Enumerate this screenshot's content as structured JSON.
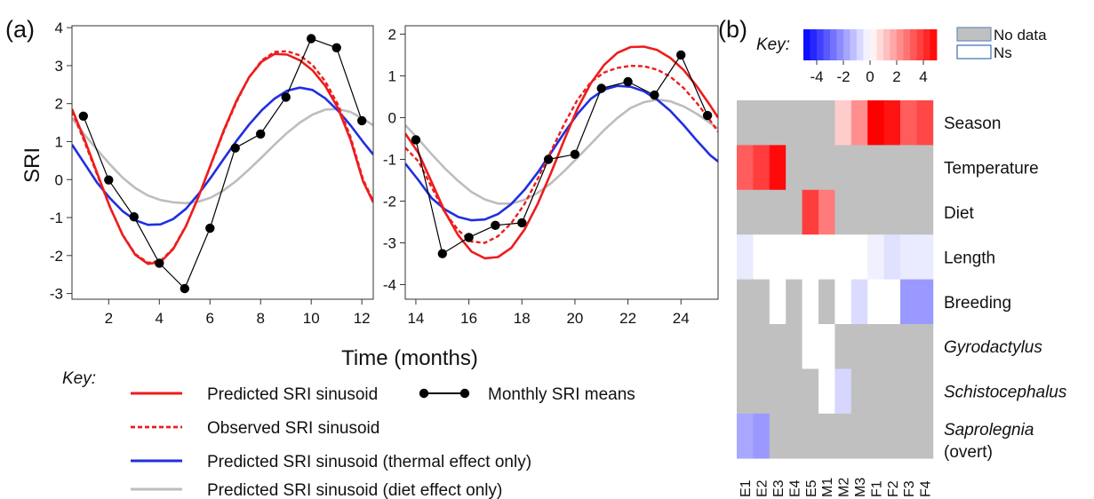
{
  "panel_labels": {
    "a": "(a)",
    "b": "(b)"
  },
  "chart_data": [
    {
      "type": "line",
      "panel": "(a) left",
      "ylabel": "SRI",
      "xlabel": "Time (months)",
      "xlim": [
        0.55,
        12.45
      ],
      "ylim": [
        -3.15,
        4.05
      ],
      "xticks": [
        2,
        4,
        6,
        8,
        10,
        12
      ],
      "yticks": [
        -3,
        -2,
        -1,
        0,
        1,
        2,
        3,
        4
      ],
      "series": [
        {
          "name": "Predicted SRI sinusoid",
          "style": "red-solid",
          "color": "#ee1c1c",
          "x": [
            0.55,
            1.05,
            1.55,
            2.05,
            2.55,
            3.05,
            3.55,
            4.05,
            4.55,
            5.05,
            5.55,
            6.05,
            6.55,
            7.05,
            7.55,
            8.05,
            8.55,
            9.05,
            9.55,
            10.05,
            10.55,
            11.05,
            11.55,
            12.05,
            12.45
          ],
          "y": [
            1.86,
            1.05,
            0.16,
            -0.72,
            -1.46,
            -1.98,
            -2.22,
            -2.17,
            -1.83,
            -1.23,
            -0.45,
            0.43,
            1.3,
            2.08,
            2.7,
            3.11,
            3.31,
            3.29,
            3.14,
            2.88,
            2.47,
            1.89,
            1.05,
            -0.05,
            -0.6
          ]
        },
        {
          "name": "Observed SRI sinusoid",
          "style": "red-dotted",
          "color": "#ee1c1c",
          "x": [
            0.55,
            1.05,
            1.55,
            2.05,
            2.55,
            3.05,
            3.55,
            4.05,
            4.55,
            5.05,
            5.55,
            6.05,
            6.55,
            7.05,
            7.55,
            8.05,
            8.55,
            9.05,
            9.55,
            10.05,
            10.55,
            11.05,
            11.55,
            12.05,
            12.45
          ],
          "y": [
            1.8,
            0.99,
            0.12,
            -0.72,
            -1.45,
            -1.96,
            -2.19,
            -2.14,
            -1.81,
            -1.22,
            -0.45,
            0.41,
            1.27,
            2.05,
            2.7,
            3.14,
            3.36,
            3.38,
            3.27,
            3.02,
            2.59,
            1.98,
            1.12,
            0.0,
            -0.57
          ]
        },
        {
          "name": "Predicted SRI sinusoid (thermal effect only)",
          "style": "blue-solid",
          "color": "#1f2fe0",
          "x": [
            0.55,
            1.05,
            1.55,
            2.05,
            2.55,
            3.05,
            3.55,
            4.05,
            4.55,
            5.05,
            5.55,
            6.05,
            6.55,
            7.05,
            7.55,
            8.05,
            8.55,
            9.05,
            9.55,
            10.05,
            10.55,
            11.05,
            11.55,
            12.05,
            12.45
          ],
          "y": [
            0.92,
            0.42,
            -0.09,
            -0.49,
            -0.83,
            -1.07,
            -1.19,
            -1.18,
            -1.04,
            -0.77,
            -0.38,
            0.07,
            0.55,
            1.02,
            1.45,
            1.83,
            2.13,
            2.34,
            2.42,
            2.36,
            2.14,
            1.82,
            1.43,
            0.99,
            0.66
          ]
        },
        {
          "name": "Predicted SRI sinusoid (diet effect only)",
          "style": "grey-solid",
          "color": "#bdbdbd",
          "x": [
            0.55,
            1.05,
            1.55,
            2.05,
            2.55,
            3.05,
            3.55,
            4.05,
            4.55,
            5.05,
            5.55,
            6.05,
            6.55,
            7.05,
            7.55,
            8.05,
            8.55,
            9.05,
            9.55,
            10.05,
            10.55,
            11.05,
            11.55,
            12.05,
            12.45
          ],
          "y": [
            1.62,
            1.18,
            0.78,
            0.4,
            0.05,
            -0.22,
            -0.42,
            -0.54,
            -0.6,
            -0.62,
            -0.58,
            -0.47,
            -0.28,
            -0.03,
            0.27,
            0.59,
            0.92,
            1.23,
            1.5,
            1.71,
            1.84,
            1.86,
            1.78,
            1.6,
            1.43
          ]
        },
        {
          "name": "Monthly SRI means",
          "style": "black-points",
          "color": "#000000",
          "x": [
            1,
            2,
            3,
            4,
            5,
            6,
            7,
            8,
            9,
            10,
            11,
            12
          ],
          "y": [
            1.67,
            -0.01,
            -0.98,
            -2.2,
            -2.87,
            -1.28,
            0.83,
            1.2,
            2.17,
            3.71,
            3.47,
            1.55
          ]
        }
      ]
    },
    {
      "type": "line",
      "panel": "(a) right",
      "xlabel": "Time (months)",
      "xlim": [
        13.6,
        25.4
      ],
      "ylim": [
        -4.35,
        2.2
      ],
      "xticks": [
        14,
        16,
        18,
        20,
        22,
        24
      ],
      "yticks": [
        -4,
        -3,
        -2,
        -1,
        0,
        1,
        2
      ],
      "series": [
        {
          "name": "Predicted SRI sinusoid",
          "style": "red-solid",
          "color": "#ee1c1c",
          "x": [
            13.6,
            14.1,
            14.6,
            15.1,
            15.6,
            16.1,
            16.6,
            17.1,
            17.6,
            18.1,
            18.6,
            19.1,
            19.6,
            20.1,
            20.6,
            21.1,
            21.6,
            22.1,
            22.6,
            23.1,
            23.6,
            24.1,
            24.6,
            25.1,
            25.4
          ],
          "y": [
            -0.38,
            -0.85,
            -1.55,
            -2.26,
            -2.82,
            -3.21,
            -3.37,
            -3.34,
            -3.12,
            -2.68,
            -2.06,
            -1.32,
            -0.53,
            0.22,
            0.82,
            1.26,
            1.55,
            1.69,
            1.7,
            1.62,
            1.43,
            1.14,
            0.75,
            0.29,
            0.0
          ]
        },
        {
          "name": "Observed SRI sinusoid",
          "style": "red-dotted",
          "color": "#ee1c1c",
          "x": [
            13.6,
            14.1,
            14.6,
            15.1,
            15.6,
            16.1,
            16.6,
            17.1,
            17.6,
            18.1,
            18.6,
            19.1,
            19.6,
            20.1,
            20.6,
            21.1,
            21.6,
            22.1,
            22.6,
            23.1,
            23.6,
            24.1,
            24.6,
            25.1,
            25.4
          ],
          "y": [
            -0.72,
            -1.05,
            -1.67,
            -2.28,
            -2.7,
            -2.97,
            -3.0,
            -2.84,
            -2.53,
            -2.07,
            -1.46,
            -0.8,
            -0.15,
            0.43,
            0.85,
            1.08,
            1.19,
            1.24,
            1.23,
            1.15,
            0.98,
            0.71,
            0.35,
            -0.07,
            -0.34
          ]
        },
        {
          "name": "Predicted SRI sinusoid (thermal effect only)",
          "style": "blue-solid",
          "color": "#1f2fe0",
          "x": [
            13.6,
            14.1,
            14.6,
            15.1,
            15.6,
            16.1,
            16.6,
            17.1,
            17.6,
            18.1,
            18.6,
            19.1,
            19.6,
            20.1,
            20.6,
            21.1,
            21.6,
            22.1,
            22.6,
            23.1,
            23.6,
            24.1,
            24.6,
            25.1,
            25.4
          ],
          "y": [
            -1.1,
            -1.5,
            -1.93,
            -2.2,
            -2.38,
            -2.46,
            -2.44,
            -2.31,
            -2.07,
            -1.73,
            -1.31,
            -0.84,
            -0.36,
            0.09,
            0.45,
            0.67,
            0.76,
            0.74,
            0.63,
            0.43,
            0.16,
            -0.18,
            -0.55,
            -0.9,
            -1.05
          ]
        },
        {
          "name": "Predicted SRI sinusoid (diet effect only)",
          "style": "grey-solid",
          "color": "#bdbdbd",
          "x": [
            13.6,
            14.1,
            14.6,
            15.1,
            15.6,
            16.1,
            16.6,
            17.1,
            17.6,
            18.1,
            18.6,
            19.1,
            19.6,
            20.1,
            20.6,
            21.1,
            21.6,
            22.1,
            22.6,
            23.1,
            23.6,
            24.1,
            24.6,
            25.1,
            25.4
          ],
          "y": [
            -0.18,
            -0.52,
            -0.88,
            -1.22,
            -1.52,
            -1.78,
            -1.96,
            -2.06,
            -2.06,
            -1.97,
            -1.8,
            -1.57,
            -1.28,
            -0.96,
            -0.63,
            -0.3,
            -0.01,
            0.23,
            0.37,
            0.43,
            0.39,
            0.27,
            0.09,
            -0.13,
            -0.26
          ]
        },
        {
          "name": "Monthly SRI means",
          "style": "black-points",
          "color": "#000000",
          "x": [
            14,
            15,
            16,
            17,
            18,
            19,
            20,
            21,
            22,
            23,
            24,
            25
          ],
          "y": [
            -0.53,
            -3.26,
            -2.87,
            -2.58,
            -2.52,
            -1.0,
            -0.88,
            0.7,
            0.86,
            0.54,
            1.5,
            0.05
          ]
        }
      ]
    },
    {
      "type": "heatmap",
      "panel": "(b)",
      "columns": [
        "E1",
        "E2",
        "E3",
        "E4",
        "E5",
        "M1",
        "M2",
        "M3",
        "F1",
        "F2",
        "F3",
        "F4"
      ],
      "rows": [
        {
          "label": "Season",
          "italic": false
        },
        {
          "label": "Temperature",
          "italic": false
        },
        {
          "label": "Diet",
          "italic": false
        },
        {
          "label": "Length",
          "italic": false
        },
        {
          "label": "Breeding",
          "italic": false
        },
        {
          "label": "Gyrodactylus",
          "italic": true
        },
        {
          "label": "Schistocephalus",
          "italic": true
        },
        {
          "label": "Saprolegnia",
          "label2": "(overt)",
          "italic": true
        }
      ],
      "values": [
        [
          null,
          null,
          null,
          null,
          null,
          null,
          1.0,
          2.2,
          5.0,
          4.6,
          3.2,
          3.6
        ],
        [
          3.2,
          3.8,
          4.8,
          null,
          null,
          null,
          null,
          null,
          null,
          null,
          null,
          null
        ],
        [
          null,
          null,
          null,
          null,
          3.8,
          2.6,
          null,
          null,
          null,
          null,
          null,
          null
        ],
        [
          -0.4,
          "ns",
          "ns",
          "ns",
          "ns",
          "ns",
          "ns",
          "ns",
          -0.3,
          -0.6,
          -0.4,
          -0.4
        ],
        [
          null,
          null,
          "ns",
          null,
          "ns",
          null,
          "ns",
          -0.7,
          "ns",
          "ns",
          -2.0,
          -2.0
        ],
        [
          null,
          null,
          null,
          null,
          "ns",
          "ns",
          null,
          null,
          null,
          null,
          null,
          null
        ],
        [
          null,
          null,
          null,
          null,
          null,
          "ns",
          -0.8,
          null,
          null,
          null,
          null,
          null
        ],
        [
          -1.7,
          -2.0,
          null,
          null,
          null,
          null,
          null,
          null,
          null,
          null,
          null,
          null
        ]
      ],
      "colorbar": {
        "title": "Key:",
        "min": -5,
        "max": 5,
        "ticks": [
          -4,
          -2,
          0,
          2,
          4
        ],
        "tick_labels": [
          "-4",
          "-2",
          "0",
          "2",
          "4"
        ],
        "low_color": "#0000ff",
        "mid_color": "#ffffff",
        "high_color": "#ff0000"
      },
      "legend": [
        {
          "label": "No data",
          "fill": "#c0c0c0",
          "stroke": "#6b8db5"
        },
        {
          "label": "Ns",
          "fill": "#ffffff",
          "stroke": "#3e6fb0"
        }
      ],
      "nodata_color": "#c0c0c0"
    }
  ],
  "key": {
    "title": "Key:",
    "items": [
      {
        "label": "Predicted SRI sinusoid",
        "style": "red-solid"
      },
      {
        "label": "Observed SRI sinusoid",
        "style": "red-dotted"
      },
      {
        "label": "Predicted SRI sinusoid (thermal effect only)",
        "style": "blue-solid"
      },
      {
        "label": "Predicted SRI sinusoid (diet effect only)",
        "style": "grey-solid"
      },
      {
        "label": "Monthly SRI means",
        "style": "black-points"
      }
    ]
  }
}
